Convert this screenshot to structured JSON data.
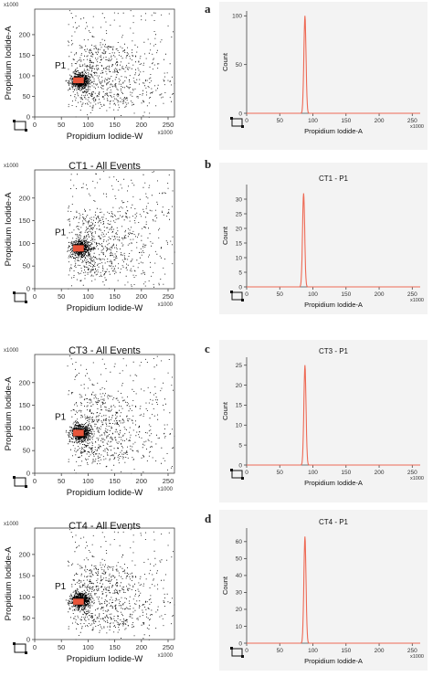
{
  "colors": {
    "dot": "#000000",
    "gate": "#e8553a",
    "hist_line": "#ee6a55",
    "hist_bg": "#f3f3f3",
    "axis": "#444444"
  },
  "panels": [
    {
      "letter": "a",
      "scatter": {
        "title": "",
        "gate_label": "P1",
        "xlabel": "Propidium Iodide-W",
        "ylabel": "Propidium Iodide-A",
        "multiplier_x": "x1000",
        "multiplier_y": "x1000",
        "xticks": [
          "0",
          "50",
          "100",
          "150",
          "200",
          "250"
        ],
        "yticks": [
          "0",
          "50",
          "100",
          "150",
          "200"
        ]
      },
      "hist": {
        "title": "",
        "xlabel": "Propidium Iodide-A",
        "ylabel": "Count",
        "multiplier_x": "x1000",
        "xticks": [
          "0",
          "50",
          "100",
          "150",
          "200",
          "250"
        ],
        "yticks": [
          "0",
          "50",
          "100"
        ]
      }
    },
    {
      "letter": "b",
      "scatter": {
        "title": "CT1 - All Events",
        "gate_label": "P1",
        "xlabel": "Propidium Iodide-W",
        "ylabel": "Propidium Iodide-A",
        "multiplier_x": "x1000",
        "multiplier_y": "x1000",
        "xticks": [
          "0",
          "50",
          "100",
          "150",
          "200",
          "250"
        ],
        "yticks": [
          "0",
          "50",
          "100",
          "150",
          "200"
        ]
      },
      "hist": {
        "title": "CT1 - P1",
        "xlabel": "Propidium Iodide-A",
        "ylabel": "Count",
        "multiplier_x": "x1000",
        "xticks": [
          "0",
          "50",
          "100",
          "150",
          "200",
          "250"
        ],
        "yticks": [
          "0",
          "5",
          "10",
          "15",
          "20",
          "25",
          "30"
        ]
      }
    },
    {
      "letter": "c",
      "scatter": {
        "title": "CT3 - All Events",
        "gate_label": "P1",
        "xlabel": "Propidium Iodide-W",
        "ylabel": "Propidium Iodide-A",
        "multiplier_x": "x1000",
        "multiplier_y": "x1000",
        "xticks": [
          "0",
          "50",
          "100",
          "150",
          "200",
          "250"
        ],
        "yticks": [
          "0",
          "50",
          "100",
          "150",
          "200"
        ]
      },
      "hist": {
        "title": "CT3 - P1",
        "xlabel": "Propidium Iodide-A",
        "ylabel": "Count",
        "multiplier_x": "x1000",
        "xticks": [
          "0",
          "50",
          "100",
          "150",
          "200",
          "250"
        ],
        "yticks": [
          "0",
          "5",
          "10",
          "15",
          "20",
          "25"
        ]
      }
    },
    {
      "letter": "d",
      "scatter": {
        "title": "CT4 - All Events",
        "gate_label": "P1",
        "xlabel": "Propidium Iodide-W",
        "ylabel": "Propidium Iodide-A",
        "multiplier_x": "x1000",
        "multiplier_y": "x1000",
        "xticks": [
          "0",
          "50",
          "100",
          "150",
          "200",
          "250"
        ],
        "yticks": [
          "0",
          "50",
          "100",
          "150",
          "200"
        ]
      },
      "hist": {
        "title": "CT4 - P1",
        "xlabel": "Propidium Iodide-A",
        "ylabel": "Count",
        "multiplier_x": "x1000",
        "xticks": [
          "0",
          "50",
          "100",
          "150",
          "200",
          "250"
        ],
        "yticks": [
          "0",
          "10",
          "20",
          "30",
          "40",
          "50",
          "60"
        ]
      }
    }
  ],
  "chart_data": [
    {
      "type": "scatter",
      "title": "",
      "xlabel": "Propidium Iodide-W",
      "ylabel": "Propidium Iodide-A",
      "xlim": [
        0,
        262
      ],
      "ylim": [
        0,
        262
      ],
      "gate": {
        "label": "P1",
        "x_range": [
          72,
          92
        ],
        "y_range": [
          82,
          96
        ]
      },
      "cluster_center": [
        80,
        88
      ]
    },
    {
      "type": "line",
      "title": "",
      "xlabel": "Propidium Iodide-A",
      "ylabel": "Count",
      "xlim": [
        0,
        262
      ],
      "ylim": [
        0,
        105
      ],
      "peak_x": 88,
      "peak_count": 100
    },
    {
      "type": "scatter",
      "title": "CT1 - All Events",
      "xlabel": "Propidium Iodide-W",
      "ylabel": "Propidium Iodide-A",
      "xlim": [
        0,
        262
      ],
      "ylim": [
        0,
        262
      ],
      "gate": {
        "label": "P1",
        "x_range": [
          72,
          92
        ],
        "y_range": [
          82,
          96
        ]
      },
      "cluster_center": [
        80,
        90
      ]
    },
    {
      "type": "line",
      "title": "CT1 - P1",
      "xlabel": "Propidium Iodide-A",
      "ylabel": "Count",
      "xlim": [
        0,
        262
      ],
      "ylim": [
        0,
        35
      ],
      "peak_x": 86,
      "peak_count": 32
    },
    {
      "type": "scatter",
      "title": "CT3 - All Events",
      "xlabel": "Propidium Iodide-W",
      "ylabel": "Propidium Iodide-A",
      "xlim": [
        0,
        262
      ],
      "ylim": [
        0,
        262
      ],
      "gate": {
        "label": "P1",
        "x_range": [
          72,
          92
        ],
        "y_range": [
          82,
          96
        ]
      },
      "cluster_center": [
        80,
        90
      ]
    },
    {
      "type": "line",
      "title": "CT3 - P1",
      "xlabel": "Propidium Iodide-A",
      "ylabel": "Count",
      "xlim": [
        0,
        262
      ],
      "ylim": [
        0,
        27
      ],
      "peak_x": 88,
      "peak_count": 25
    },
    {
      "type": "scatter",
      "title": "CT4 - All Events",
      "xlabel": "Propidium Iodide-W",
      "ylabel": "Propidium Iodide-A",
      "xlim": [
        0,
        262
      ],
      "ylim": [
        0,
        262
      ],
      "gate": {
        "label": "P1",
        "x_range": [
          72,
          92
        ],
        "y_range": [
          82,
          96
        ]
      },
      "cluster_center": [
        80,
        92
      ]
    },
    {
      "type": "line",
      "title": "CT4 - P1",
      "xlabel": "Propidium Iodide-A",
      "ylabel": "Count",
      "xlim": [
        0,
        262
      ],
      "ylim": [
        0,
        68
      ],
      "peak_x": 88,
      "peak_count": 63
    }
  ]
}
